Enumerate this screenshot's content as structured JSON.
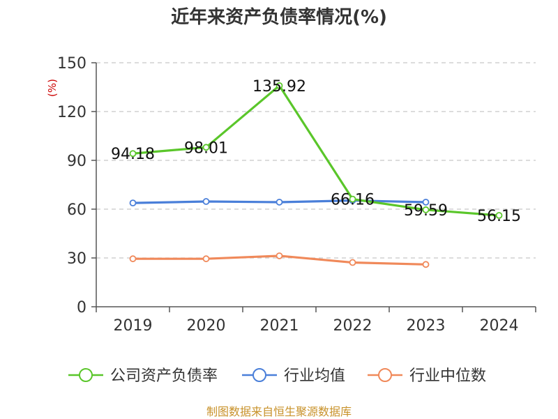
{
  "chart_data": {
    "type": "line",
    "title": "近年来资产负债率情况(%)",
    "ylabel": "(%)",
    "xlabel": "",
    "categories": [
      "2019",
      "2020",
      "2021",
      "2022",
      "2023",
      "2024"
    ],
    "ylim": [
      0,
      150
    ],
    "yticks": [
      0,
      30,
      60,
      90,
      120,
      150
    ],
    "grid": true,
    "legend_position": "bottom",
    "series": [
      {
        "name": "公司资产负债率",
        "color": "#5ac62a",
        "values": [
          94.18,
          98.01,
          135.92,
          66.16,
          59.59,
          56.15
        ],
        "labels": [
          "94.18",
          "98.01",
          "135.92",
          "66.16",
          "59.59",
          "56.15"
        ]
      },
      {
        "name": "行业均值",
        "color": "#4a7fd9",
        "values": [
          63.8,
          64.7,
          64.3,
          65.3,
          64.3,
          null
        ],
        "labels": null
      },
      {
        "name": "行业中位数",
        "color": "#f0895a",
        "values": [
          29.5,
          29.5,
          31.3,
          27.2,
          26.0,
          null
        ],
        "labels": null
      }
    ]
  },
  "source_note": "制图数据来自恒生聚源数据库"
}
